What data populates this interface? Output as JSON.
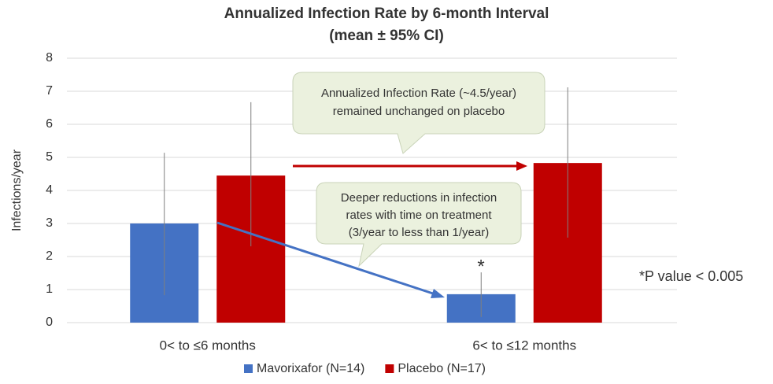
{
  "chart_data": {
    "type": "bar",
    "title": "Annualized Infection Rate by  6-month Interval",
    "subtitle": "(mean ± 95% CI)",
    "y_label": "Infections/year",
    "categories": [
      "0< to ≤6 months",
      "6< to ≤12 months"
    ],
    "series": [
      {
        "name": "Mavorixafor (N=14)",
        "color": "#4472c4",
        "values": [
          3.0,
          0.86
        ],
        "ci_low": [
          0.83,
          0.17
        ],
        "ci_high": [
          5.14,
          1.52
        ]
      },
      {
        "name": "Placebo (N=17)",
        "color": "#c00000",
        "values": [
          4.45,
          4.83
        ],
        "ci_low": [
          2.31,
          2.57
        ],
        "ci_high": [
          6.67,
          7.12
        ]
      }
    ],
    "ylim": [
      0,
      8
    ],
    "yticks": [
      0,
      1,
      2,
      3,
      4,
      5,
      6,
      7,
      8
    ],
    "grid": true,
    "legend": "bottom",
    "significance_marker": "*",
    "footnote": "*P value < 0.005",
    "annotations": [
      [
        "Annualized Infection Rate (~4.5/year)",
        "remained unchanged on placebo"
      ],
      [
        "Deeper reductions in infection",
        "rates with time on treatment",
        "(3/year to less than 1/year)"
      ]
    ]
  }
}
